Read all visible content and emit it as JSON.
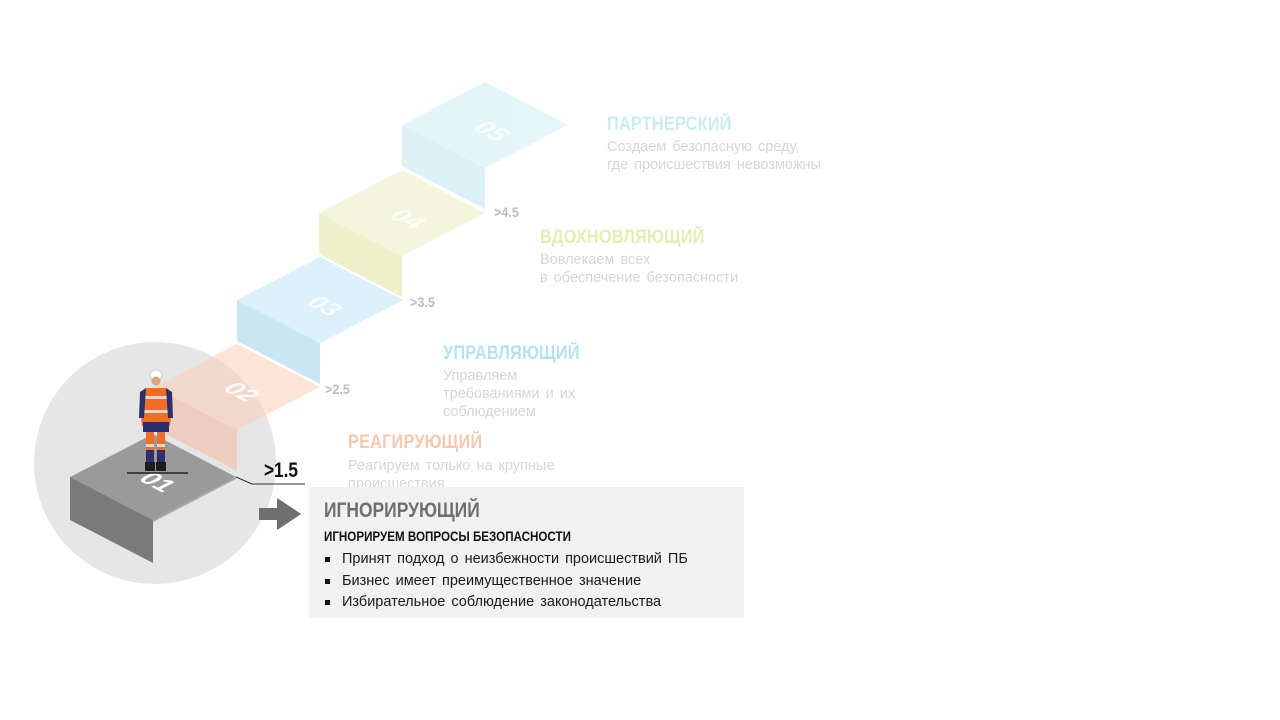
{
  "levels": [
    {
      "number": "01",
      "title": "ИГНОРИРУЮЩИЙ",
      "color": "#6e6e6e"
    },
    {
      "number": "02",
      "title": "РЕАГИРУЮЩИЙ",
      "lines": [
        "Реагируем только на крупные",
        "происшествия"
      ],
      "threshold": ">1.5",
      "color": "#f7c9ae"
    },
    {
      "number": "03",
      "title": "УПРАВЛЯЮЩИЙ",
      "lines": [
        "Управляем",
        "требованиями и их",
        "соблюдением"
      ],
      "threshold": ">2.5",
      "color": "#b7e3f5"
    },
    {
      "number": "04",
      "title": "ВДОХНОВЛЯЮЩИЙ",
      "lines": [
        "Вовлекаем всех",
        "в обеспечение безопасности"
      ],
      "threshold": ">3.5",
      "color": "#e8efb3"
    },
    {
      "number": "05",
      "title": "ПАРТНЕРСКИЙ",
      "lines": [
        "Создаем безопасную среду,",
        "где происшествия невозможны"
      ],
      "threshold": ">4.5",
      "color": "#c8eef0"
    }
  ],
  "current_panel": {
    "title": "ИГНОРИРУЮЩИЙ",
    "subtitle": "ИГНОРИРУЕМ ВОПРОСЫ БЕЗОПАСНОСТИ",
    "bullets": [
      "Принят подход о неизбежности происшествий ПБ",
      "Бизнес имеет преимущественное значение",
      "Избирательное соблюдение законодательства"
    ]
  },
  "icons": {
    "arrow": "arrow-right-icon",
    "worker": "worker-figure",
    "highlight": "current-level-circle"
  }
}
